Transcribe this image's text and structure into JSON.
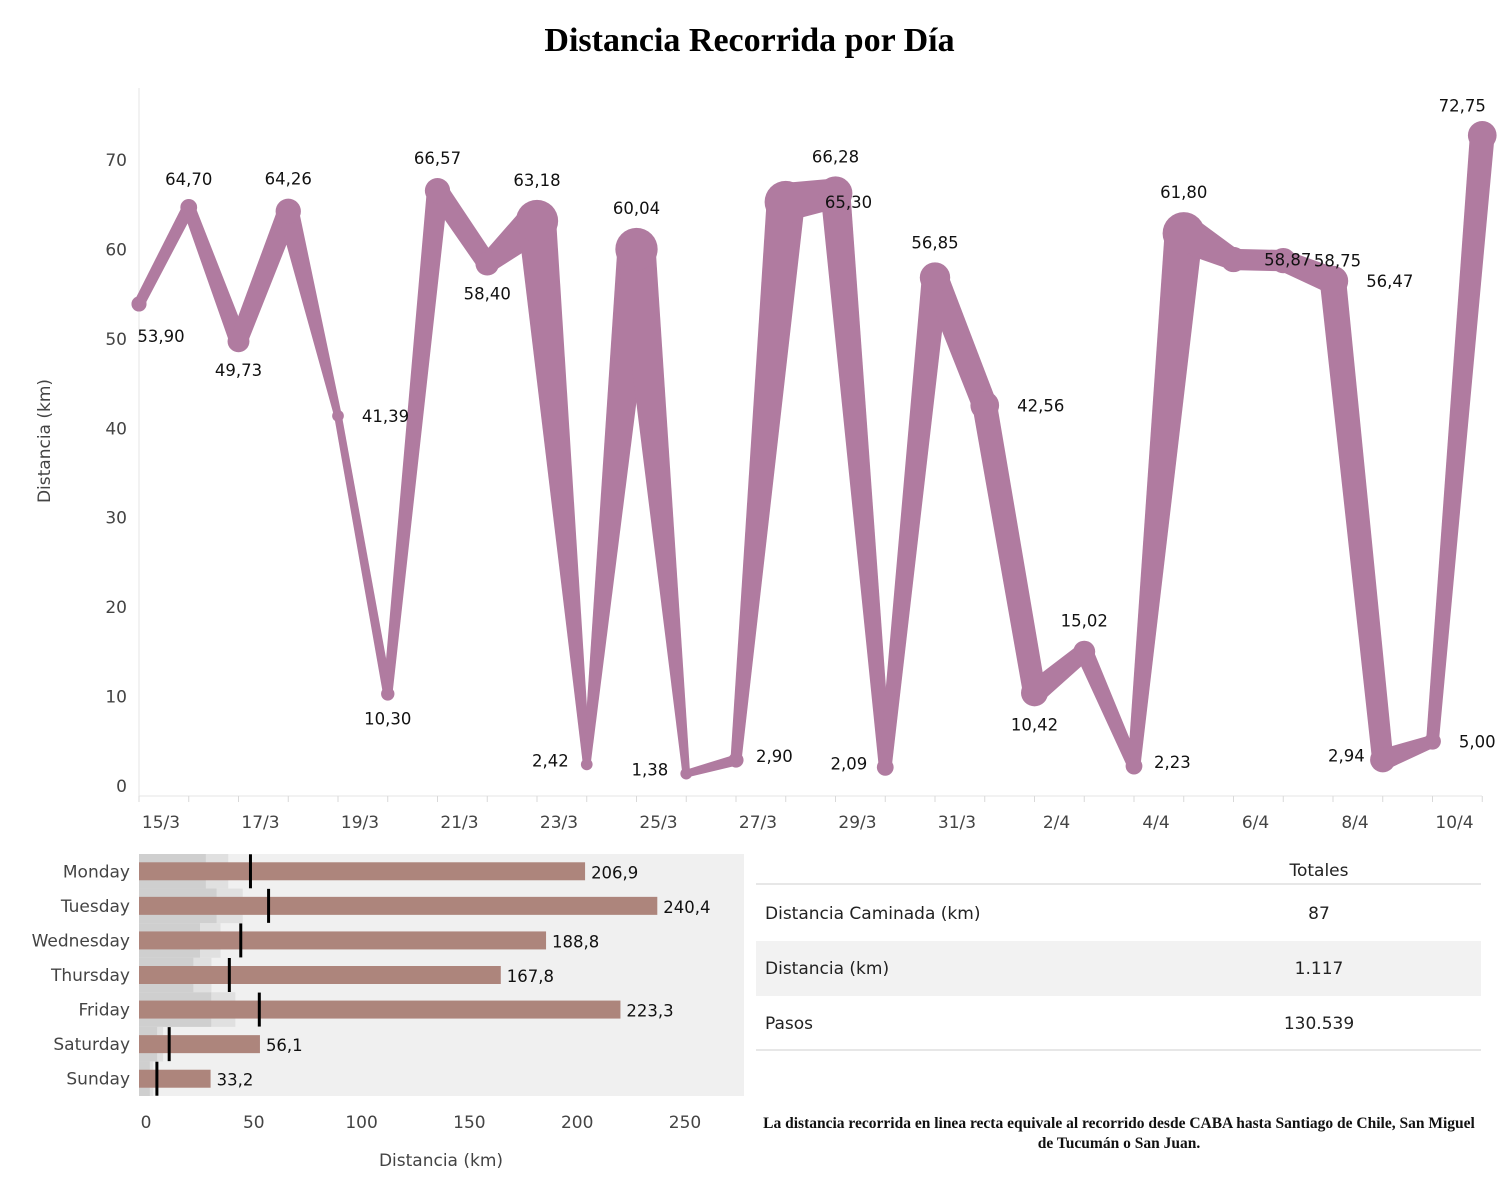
{
  "title": "Distancia Recorrida por Día",
  "note": "La distancia recorrida en linea recta equivale al recorrido desde CABA hasta Santiago de Chile, San Miguel de Tucumán o San Juan.",
  "colors": {
    "line": "#b07ba0",
    "bar": "#ad857c",
    "bar_bg": "#f0f0f0",
    "band_dark": "#cfcfcf",
    "band_light": "#e0e0e0",
    "reference": "#000000"
  },
  "chart_data": [
    {
      "type": "line",
      "ylabel": "Distancia (km)",
      "ylim": [
        0,
        75
      ],
      "y_ticks": [
        0,
        10,
        20,
        30,
        40,
        50,
        60,
        70
      ],
      "x_tick_labels": [
        "15/3",
        "17/3",
        "19/3",
        "21/3",
        "23/3",
        "25/3",
        "27/3",
        "29/3",
        "31/3",
        "2/4",
        "4/4",
        "6/4",
        "8/4",
        "10/4"
      ],
      "x": [
        "15/3",
        "16/3",
        "17/3",
        "18/3",
        "19/3",
        "20/3",
        "21/3",
        "22/3",
        "23/3",
        "24/3",
        "25/3",
        "26/3",
        "27/3",
        "28/3",
        "29/3",
        "30/3",
        "31/3",
        "1/4",
        "2/4",
        "3/4",
        "4/4",
        "5/4",
        "6/4",
        "7/4",
        "8/4",
        "9/4",
        "10/4",
        "11/4"
      ],
      "values": [
        53.9,
        64.7,
        49.73,
        64.26,
        41.39,
        10.3,
        66.57,
        58.4,
        63.18,
        2.42,
        60.04,
        1.38,
        2.9,
        65.3,
        66.28,
        2.09,
        56.85,
        42.56,
        10.42,
        15.02,
        2.23,
        61.8,
        58.87,
        58.75,
        56.47,
        2.94,
        5.0,
        72.75
      ],
      "value_labels": [
        "53,90",
        "64,70",
        "49,73",
        "64,26",
        "41,39",
        "10,30",
        "66,57",
        "58,40",
        "63,18",
        "2,42",
        "60,04",
        "1,38",
        "2,90",
        "65,30",
        "66,28",
        "2,09",
        "56,85",
        "42,56",
        "10,42",
        "15,02",
        "2,23",
        "61,80",
        "58,87",
        "58,75",
        "56,47",
        "2,94",
        "5,00",
        "72,75"
      ],
      "size_weight": [
        0.15,
        0.2,
        0.35,
        0.45,
        0.05,
        0.1,
        0.45,
        0.4,
        0.95,
        0.05,
        0.95,
        0.05,
        0.15,
        0.95,
        0.7,
        0.2,
        0.6,
        0.55,
        0.5,
        0.35,
        0.2,
        0.95,
        0.45,
        0.45,
        0.6,
        0.45,
        0.2,
        0.55
      ]
    },
    {
      "type": "bar",
      "orientation": "horizontal",
      "xlabel": "Distancia (km)",
      "xlim": [
        0,
        280
      ],
      "x_ticks": [
        0,
        50,
        100,
        150,
        200,
        250
      ],
      "categories": [
        "Monday",
        "Tuesday",
        "Wednesday",
        "Thursday",
        "Friday",
        "Saturday",
        "Sunday"
      ],
      "values": [
        206.9,
        240.4,
        188.8,
        167.8,
        223.3,
        56.1,
        33.2
      ],
      "value_labels": [
        "206,9",
        "240,4",
        "188,8",
        "167,8",
        "223,3",
        "56,1",
        "33,2"
      ],
      "reference": [
        51.7,
        60.1,
        47.2,
        41.9,
        55.8,
        14.0,
        8.3
      ],
      "band_inner": [
        31.0,
        36.0,
        28.3,
        25.2,
        33.5,
        8.4,
        5.0
      ],
      "band_outer": [
        41.4,
        48.1,
        37.8,
        33.6,
        44.7,
        11.2,
        6.6
      ]
    },
    {
      "type": "table",
      "header": "Totales",
      "rows": [
        {
          "label": "Distancia Caminada (km)",
          "value": "87"
        },
        {
          "label": "Distancia (km)",
          "value": "1.117"
        },
        {
          "label": "Pasos",
          "value": "130.539"
        }
      ]
    }
  ]
}
